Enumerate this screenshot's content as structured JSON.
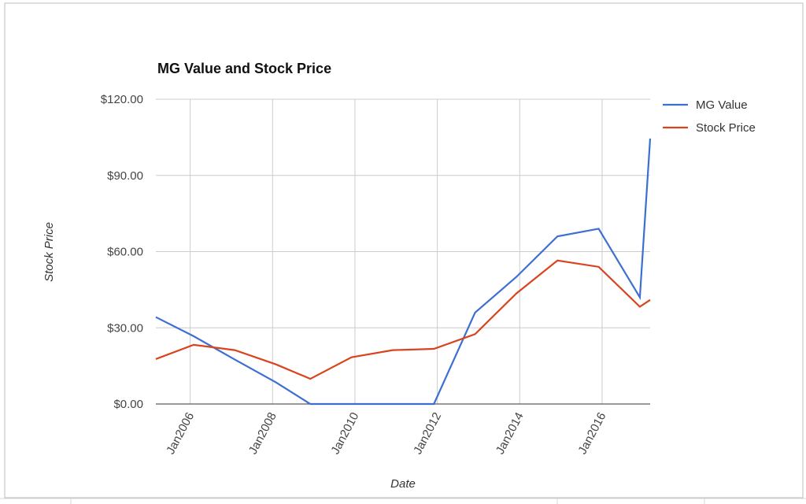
{
  "chart_data": {
    "type": "line",
    "title": "MG Value and Stock Price",
    "x_label": "Date",
    "y_label": "Stock Price",
    "x": [
      "2005-03",
      "2006-02",
      "2007-02",
      "2008-02",
      "2008-12",
      "2009-12",
      "2010-12",
      "2011-12",
      "2012-12",
      "2013-12",
      "2014-12",
      "2015-12",
      "2016-12",
      "2017-03"
    ],
    "series": [
      {
        "name": "MG Value",
        "color": "#3c6fd1",
        "values": [
          34.2,
          26.7,
          17.5,
          8.5,
          0,
          0,
          0,
          0,
          36,
          50,
          66,
          69,
          42,
          104.5
        ]
      },
      {
        "name": "Stock Price",
        "color": "#d9431e",
        "values": [
          17.7,
          23.3,
          21.2,
          15.6,
          9.9,
          18.4,
          21.2,
          21.7,
          27.5,
          43.5,
          56.5,
          54,
          38.3,
          41
        ]
      }
    ],
    "xlim": [
      "2005-03",
      "2017-03"
    ],
    "xticks": [
      {
        "value": "2006-01",
        "label": "Jan2006"
      },
      {
        "value": "2008-01",
        "label": "Jan2008"
      },
      {
        "value": "2010-01",
        "label": "Jan2010"
      },
      {
        "value": "2012-01",
        "label": "Jan2012"
      },
      {
        "value": "2014-01",
        "label": "Jan2014"
      },
      {
        "value": "2016-01",
        "label": "Jan2016"
      }
    ],
    "ylim": [
      0,
      120
    ],
    "yticks": [
      {
        "value": 0,
        "label": "$0.00"
      },
      {
        "value": 30,
        "label": "$30.00"
      },
      {
        "value": 60,
        "label": "$60.00"
      },
      {
        "value": 90,
        "label": "$90.00"
      },
      {
        "value": 120,
        "label": "$120.00"
      }
    ],
    "grid": true,
    "legend": "right"
  }
}
